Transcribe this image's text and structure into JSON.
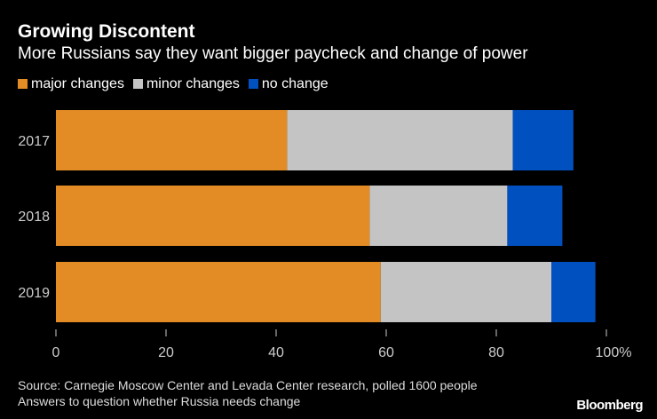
{
  "chart_data": {
    "type": "bar",
    "orientation": "horizontal",
    "stacked": true,
    "title": "Growing Discontent",
    "subtitle": "More Russians say they want bigger paycheck and change of power",
    "categories": [
      "2017",
      "2018",
      "2019"
    ],
    "series": [
      {
        "name": "major changes",
        "color": "#e38c25",
        "values": [
          42,
          57,
          59
        ]
      },
      {
        "name": "minor changes",
        "color": "#c4c4c4",
        "values": [
          41,
          25,
          31
        ]
      },
      {
        "name": "no change",
        "color": "#0050c0",
        "values": [
          11,
          10,
          8
        ]
      }
    ],
    "xlim": [
      0,
      100
    ],
    "xticks": [
      "0",
      "20",
      "40",
      "60",
      "80",
      "100%"
    ],
    "legend": "top-left",
    "grid": false
  },
  "footer": {
    "source": "Source: Carnegie Moscow Center and Levada Center research, polled 1600 people",
    "note": "Answers to question whether Russia needs change",
    "logo": "Bloomberg"
  }
}
